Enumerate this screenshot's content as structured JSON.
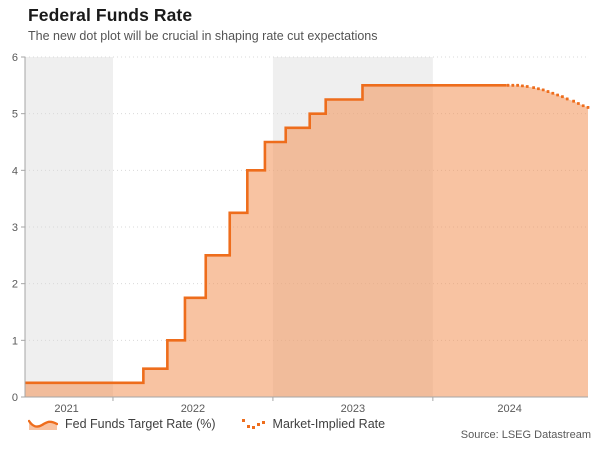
{
  "header": {
    "title": "Federal Funds Rate",
    "subtitle": "The new dot plot will be crucial in shaping rate cut expectations"
  },
  "legend": {
    "items": [
      {
        "label": "Fed Funds Target Rate (%)"
      },
      {
        "label": "Market-Implied Rate"
      }
    ]
  },
  "footer": {
    "source": "Source: LSEG Datastream"
  },
  "colors": {
    "line_orange": "#EE6D1C",
    "area_fill": "rgba(243,146,85,0.55)",
    "band_gray": "#efefef",
    "gridline": "#d9d9d9",
    "axis": "#a6a6a6",
    "axis_text": "#595959"
  },
  "chart_data": {
    "type": "area",
    "title": "Federal Funds Rate",
    "subtitle": "The new dot plot will be crucial in shaping rate cut expectations",
    "x_axis": {
      "range": [
        2021.45,
        2024.97
      ],
      "tick_positions": [
        2022,
        2023,
        2024
      ],
      "labels": [
        {
          "text": "2021",
          "x": 2021.71
        },
        {
          "text": "2022",
          "x": 2022.5
        },
        {
          "text": "2023",
          "x": 2023.5
        },
        {
          "text": "2024",
          "x": 2024.48
        }
      ]
    },
    "y_axis": {
      "range": [
        0,
        6
      ],
      "ticks": [
        0,
        1,
        2,
        3,
        4,
        5,
        6
      ]
    },
    "shaded_year_bands": [
      [
        2021.45,
        2022.0
      ],
      [
        2023.0,
        2024.0
      ]
    ],
    "grid": true,
    "legend_position": "bottom-left",
    "series": [
      {
        "name": "Fed Funds Target Rate (%)",
        "type": "step-area",
        "color": "#EE6D1C",
        "fill": "rgba(243,146,85,0.55)",
        "step_points": [
          [
            2021.45,
            0.25
          ],
          [
            2022.19,
            0.5
          ],
          [
            2022.34,
            1.0
          ],
          [
            2022.45,
            1.75
          ],
          [
            2022.58,
            2.5
          ],
          [
            2022.73,
            3.25
          ],
          [
            2022.84,
            4.0
          ],
          [
            2022.95,
            4.5
          ],
          [
            2023.08,
            4.75
          ],
          [
            2023.23,
            5.0
          ],
          [
            2023.33,
            5.25
          ],
          [
            2023.56,
            5.5
          ]
        ],
        "solid_end_x": 2024.46
      },
      {
        "name": "Market-Implied Rate",
        "type": "dots",
        "color": "#EE6D1C",
        "points": [
          [
            2024.47,
            5.5
          ],
          [
            2024.5,
            5.5
          ],
          [
            2024.53,
            5.5
          ],
          [
            2024.56,
            5.49
          ],
          [
            2024.59,
            5.48
          ],
          [
            2024.63,
            5.46
          ],
          [
            2024.66,
            5.44
          ],
          [
            2024.69,
            5.42
          ],
          [
            2024.72,
            5.39
          ],
          [
            2024.75,
            5.36
          ],
          [
            2024.78,
            5.33
          ],
          [
            2024.81,
            5.3
          ],
          [
            2024.84,
            5.26
          ],
          [
            2024.88,
            5.22
          ],
          [
            2024.91,
            5.18
          ],
          [
            2024.94,
            5.14
          ],
          [
            2024.97,
            5.11
          ]
        ]
      }
    ]
  }
}
